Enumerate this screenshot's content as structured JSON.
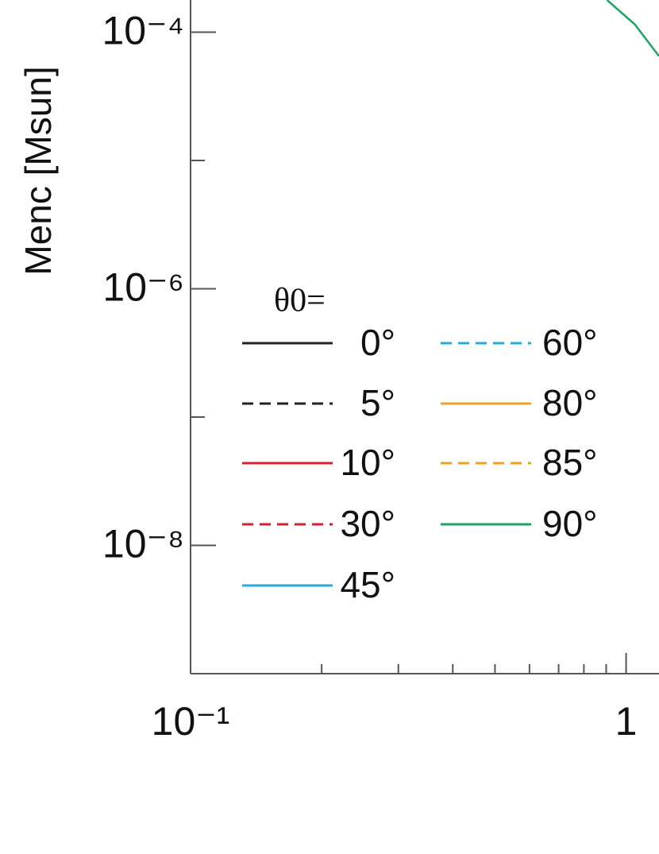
{
  "chart_data": {
    "type": "line",
    "y_label": "Menc [Msun]",
    "legend_title": "θ0=",
    "x": [
      0.904,
      1.047,
      1.19
    ],
    "xlim": [
      0.1,
      1.19
    ],
    "ylim": [
      1e-09,
      0.000178
    ],
    "xlog": true,
    "ylog": true,
    "xticks": [
      {
        "value": 0.1,
        "label": "10⁻¹"
      },
      1
    ],
    "yticks": [
      {
        "value": 0.0001,
        "label": "10⁻⁴"
      },
      {
        "value": 1e-06,
        "label": "10⁻⁶"
      },
      {
        "value": 1e-08,
        "label": "10⁻⁸"
      }
    ],
    "series": [
      {
        "name": "0°",
        "color": "#222222",
        "dashed": false,
        "values": [
          null,
          null,
          null
        ]
      },
      {
        "name": "5°",
        "color": "#222222",
        "dashed": true,
        "values": [
          null,
          null,
          null
        ]
      },
      {
        "name": "10°",
        "color": "#d62031",
        "dashed": false,
        "values": [
          null,
          null,
          null
        ]
      },
      {
        "name": "30°",
        "color": "#d62031",
        "dashed": true,
        "values": [
          null,
          null,
          null
        ]
      },
      {
        "name": "45°",
        "color": "#27aae1",
        "dashed": false,
        "values": [
          null,
          null,
          null
        ]
      },
      {
        "name": "60°",
        "color": "#27aae1",
        "dashed": true,
        "values": [
          null,
          null,
          null
        ]
      },
      {
        "name": "80°",
        "color": "#f0a020",
        "dashed": false,
        "values": [
          null,
          null,
          null
        ]
      },
      {
        "name": "85°",
        "color": "#f0a020",
        "dashed": true,
        "values": [
          null,
          null,
          null
        ]
      },
      {
        "name": "90°",
        "color": "#1fa363",
        "dashed": false,
        "values": [
          0.000178,
          0.000115,
          6.5e-05
        ]
      }
    ]
  }
}
